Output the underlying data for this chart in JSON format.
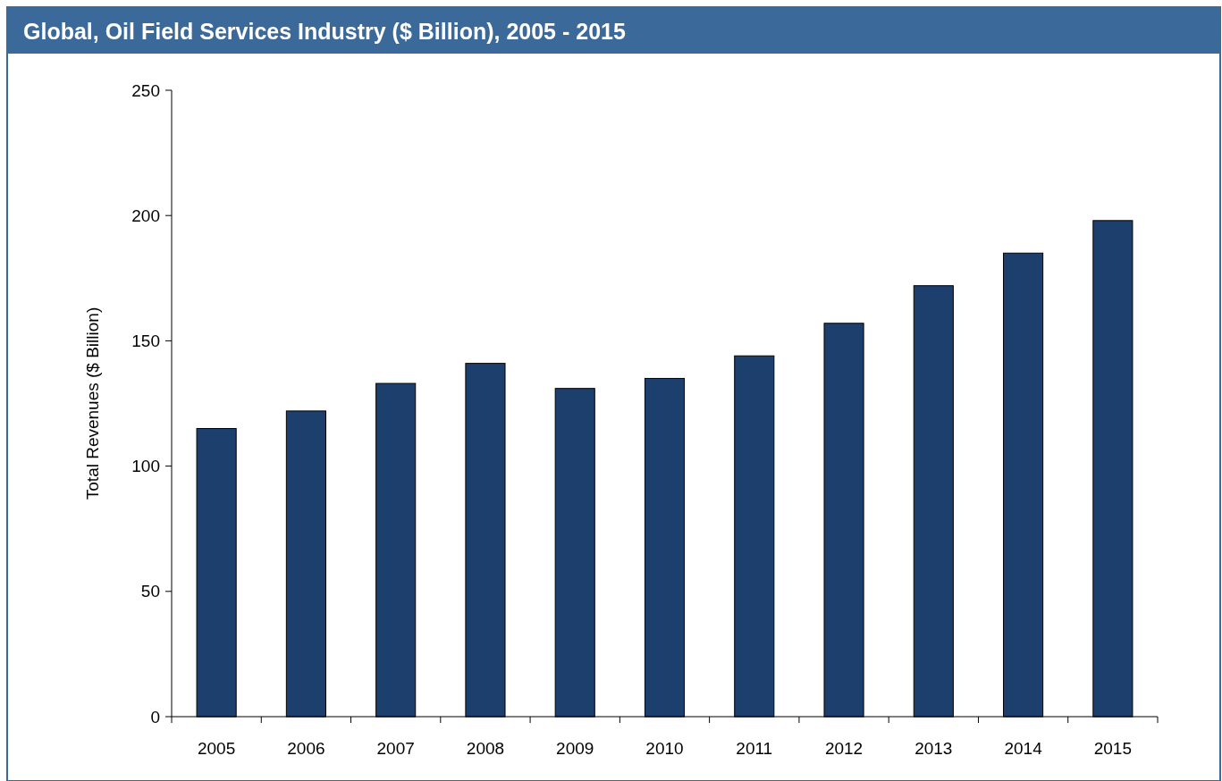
{
  "chart_data": {
    "type": "bar",
    "title": "Global, Oil Field Services Industry ($ Billion), 2005 - 2015",
    "ylabel": "Total Revenues ($ Billion)",
    "categories": [
      "2005",
      "2006",
      "2007",
      "2008",
      "2009",
      "2010",
      "2011",
      "2012",
      "2013",
      "2014",
      "2015"
    ],
    "values": [
      115,
      122,
      133,
      141,
      131,
      135,
      144,
      157,
      172,
      185,
      198
    ],
    "color": "#1c3f6d",
    "ylim": [
      0,
      250
    ],
    "yticks": [
      0,
      50,
      100,
      150,
      200,
      250
    ],
    "grid": false
  }
}
